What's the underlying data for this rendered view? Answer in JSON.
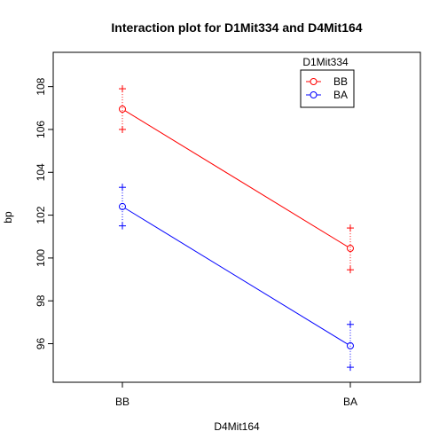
{
  "chart_data": {
    "type": "line",
    "title": "Interaction plot for D1Mit334 and D4Mit164",
    "xlabel": "D4Mit164",
    "ylabel": "bp",
    "categories": [
      "BB",
      "BA"
    ],
    "ylim": [
      94.2,
      109.6
    ],
    "yticks": [
      96,
      98,
      100,
      102,
      104,
      106,
      108
    ],
    "ytick_labels": [
      "96",
      "98",
      "100",
      "102",
      "104",
      "106",
      "108"
    ],
    "grid": false,
    "legend": {
      "title": "D1Mit334",
      "placement": "top-right",
      "entries": [
        "BB",
        "BA"
      ]
    },
    "series": [
      {
        "name": "BB",
        "color": "#ff0000",
        "means": [
          106.95,
          100.45
        ],
        "upper": [
          107.9,
          101.4
        ],
        "lower": [
          106.0,
          99.45
        ]
      },
      {
        "name": "BA",
        "color": "#0000ff",
        "means": [
          102.4,
          95.9
        ],
        "upper": [
          103.3,
          96.9
        ],
        "lower": [
          101.5,
          94.9
        ]
      }
    ]
  }
}
